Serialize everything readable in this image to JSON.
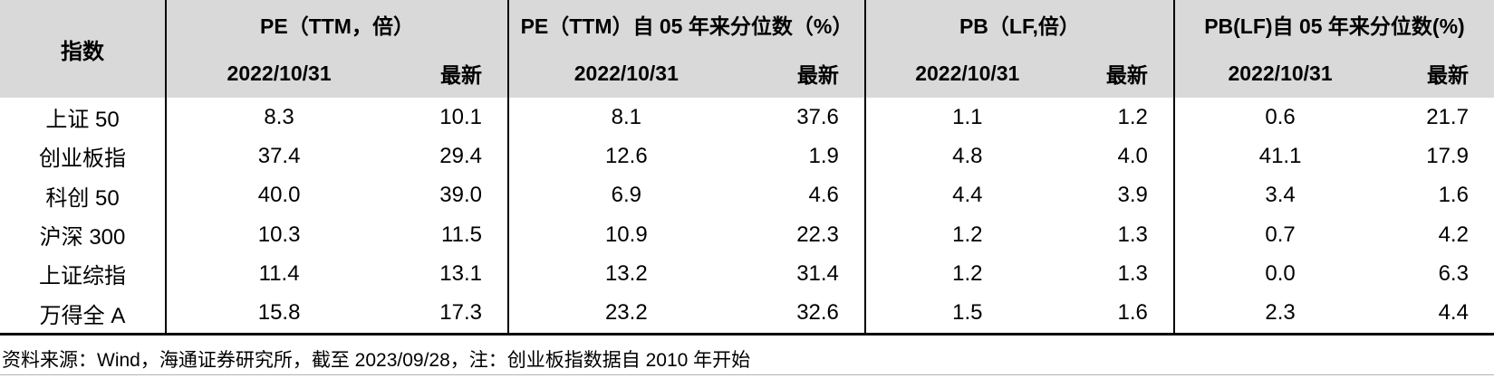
{
  "table": {
    "index_header": "指数",
    "groups": [
      {
        "title": "PE（TTM，倍）",
        "date_col": "2022/10/31",
        "latest_col": "最新"
      },
      {
        "title": "PE（TTM）自 05 年来分位数（%）",
        "date_col": "2022/10/31",
        "latest_col": "最新"
      },
      {
        "title": "PB（LF,倍）",
        "date_col": "2022/10/31",
        "latest_col": "最新"
      },
      {
        "title": "PB(LF)自 05 年来分位数(%)",
        "date_col": "2022/10/31",
        "latest_col": "最新"
      }
    ],
    "rows": [
      {
        "name": "上证 50",
        "values": [
          "8.3",
          "10.1",
          "8.1",
          "37.6",
          "1.1",
          "1.2",
          "0.6",
          "21.7"
        ]
      },
      {
        "name": "创业板指",
        "values": [
          "37.4",
          "29.4",
          "12.6",
          "1.9",
          "4.8",
          "4.0",
          "41.1",
          "17.9"
        ]
      },
      {
        "name": "科创 50",
        "values": [
          "40.0",
          "39.0",
          "6.9",
          "4.6",
          "4.4",
          "3.9",
          "3.4",
          "1.6"
        ]
      },
      {
        "name": "沪深 300",
        "values": [
          "10.3",
          "11.5",
          "10.9",
          "22.3",
          "1.2",
          "1.3",
          "0.7",
          "4.2"
        ]
      },
      {
        "name": "上证综指",
        "values": [
          "11.4",
          "13.1",
          "13.2",
          "31.4",
          "1.2",
          "1.3",
          "0.0",
          "6.3"
        ]
      },
      {
        "name": "万得全 A",
        "values": [
          "15.8",
          "17.3",
          "23.2",
          "32.6",
          "1.5",
          "1.6",
          "2.3",
          "4.4"
        ]
      }
    ]
  },
  "footer": {
    "source_note": "资料来源：Wind，海通证券研究所，截至 2023/09/28，注：创业板指数据自 2010 年开始"
  },
  "colors": {
    "header_bg": "#d9d9d9",
    "border": "#000000",
    "hairline": "#b3b3b3"
  },
  "chart_data": {
    "type": "table",
    "column_groups": [
      "PE（TTM，倍）",
      "PE（TTM）自 05 年来分位数（%）",
      "PB（LF,倍）",
      "PB(LF)自 05 年来分位数(%)"
    ],
    "columns": [
      "指数",
      "PE(TTM,倍) 2022/10/31",
      "PE(TTM,倍) 最新",
      "PE(TTM)自05年来分位数(%) 2022/10/31",
      "PE(TTM)自05年来分位数(%) 最新",
      "PB(LF,倍) 2022/10/31",
      "PB(LF,倍) 最新",
      "PB(LF)自05年来分位数(%) 2022/10/31",
      "PB(LF)自05年来分位数(%) 最新"
    ],
    "rows": [
      [
        "上证 50",
        8.3,
        10.1,
        8.1,
        37.6,
        1.1,
        1.2,
        0.6,
        21.7
      ],
      [
        "创业板指",
        37.4,
        29.4,
        12.6,
        1.9,
        4.8,
        4.0,
        41.1,
        17.9
      ],
      [
        "科创 50",
        40.0,
        39.0,
        6.9,
        4.6,
        4.4,
        3.9,
        3.4,
        1.6
      ],
      [
        "沪深 300",
        10.3,
        11.5,
        10.9,
        22.3,
        1.2,
        1.3,
        0.7,
        4.2
      ],
      [
        "上证综指",
        11.4,
        13.1,
        13.2,
        31.4,
        1.2,
        1.3,
        0.0,
        6.3
      ],
      [
        "万得全 A",
        15.8,
        17.3,
        23.2,
        32.6,
        1.5,
        1.6,
        2.3,
        4.4
      ]
    ],
    "source_note": "资料来源：Wind，海通证券研究所，截至 2023/09/28，注：创业板指数据自 2010 年开始"
  }
}
